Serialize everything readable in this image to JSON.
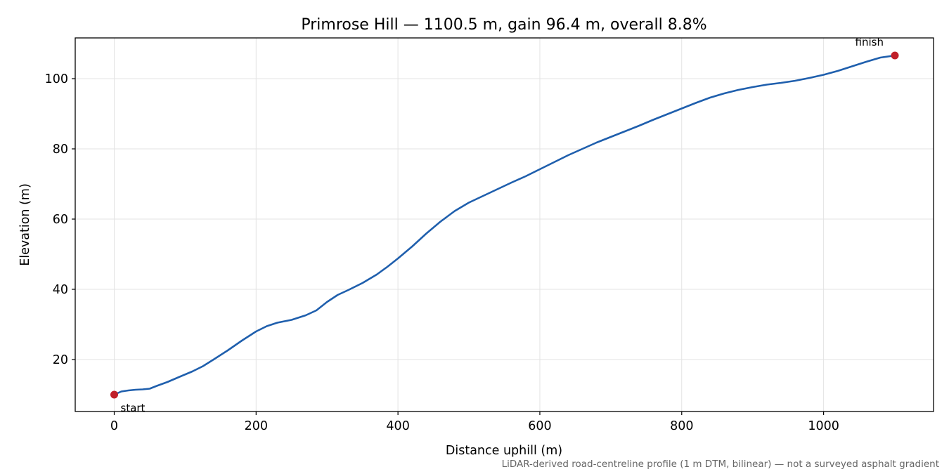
{
  "chart_data": {
    "type": "line",
    "title": "Primrose Hill — 1100.5 m, gain 96.4 m, overall 8.8%",
    "xlabel": "Distance uphill (m)",
    "ylabel": "Elevation (m)",
    "xlim": [
      -55,
      1155
    ],
    "ylim": [
      5.2,
      111.6
    ],
    "xticks": [
      0,
      200,
      400,
      600,
      800,
      1000
    ],
    "yticks": [
      20,
      40,
      60,
      80,
      100
    ],
    "grid": true,
    "colors": {
      "line": "#1f5fad",
      "markers": "#c0202a",
      "grid": "#e3e3e3",
      "footnote": "#666666"
    },
    "series": [
      {
        "x": [
          0,
          10,
          20,
          30,
          40,
          50,
          60,
          75,
          90,
          110,
          125,
          140,
          160,
          180,
          200,
          215,
          230,
          250,
          270,
          285,
          300,
          315,
          330,
          350,
          370,
          385,
          400,
          420,
          440,
          460,
          480,
          500,
          520,
          540,
          560,
          580,
          600,
          620,
          640,
          660,
          680,
          700,
          720,
          740,
          760,
          780,
          800,
          820,
          840,
          860,
          880,
          900,
          920,
          940,
          960,
          980,
          1000,
          1020,
          1040,
          1060,
          1080,
          1100.5
        ],
        "y": [
          10.0,
          10.9,
          11.2,
          11.4,
          11.5,
          11.7,
          12.5,
          13.6,
          14.9,
          16.6,
          18.1,
          20.0,
          22.6,
          25.4,
          28.0,
          29.5,
          30.5,
          31.3,
          32.6,
          34.0,
          36.4,
          38.4,
          39.8,
          41.8,
          44.2,
          46.4,
          48.8,
          52.2,
          55.9,
          59.3,
          62.3,
          64.7,
          66.6,
          68.5,
          70.4,
          72.2,
          74.2,
          76.2,
          78.2,
          80.0,
          81.8,
          83.4,
          85.0,
          86.6,
          88.3,
          89.9,
          91.5,
          93.1,
          94.6,
          95.8,
          96.8,
          97.6,
          98.3,
          98.8,
          99.4,
          100.2,
          101.1,
          102.2,
          103.5,
          104.8,
          106.0,
          106.6
        ]
      }
    ],
    "markers": [
      {
        "label": "start",
        "x": 0,
        "y": 10.0
      },
      {
        "label": "finish",
        "x": 1100.5,
        "y": 106.6
      }
    ],
    "footnote": "LiDAR-derived road-centreline profile (1 m DTM, bilinear) — not a surveyed asphalt gradient"
  }
}
